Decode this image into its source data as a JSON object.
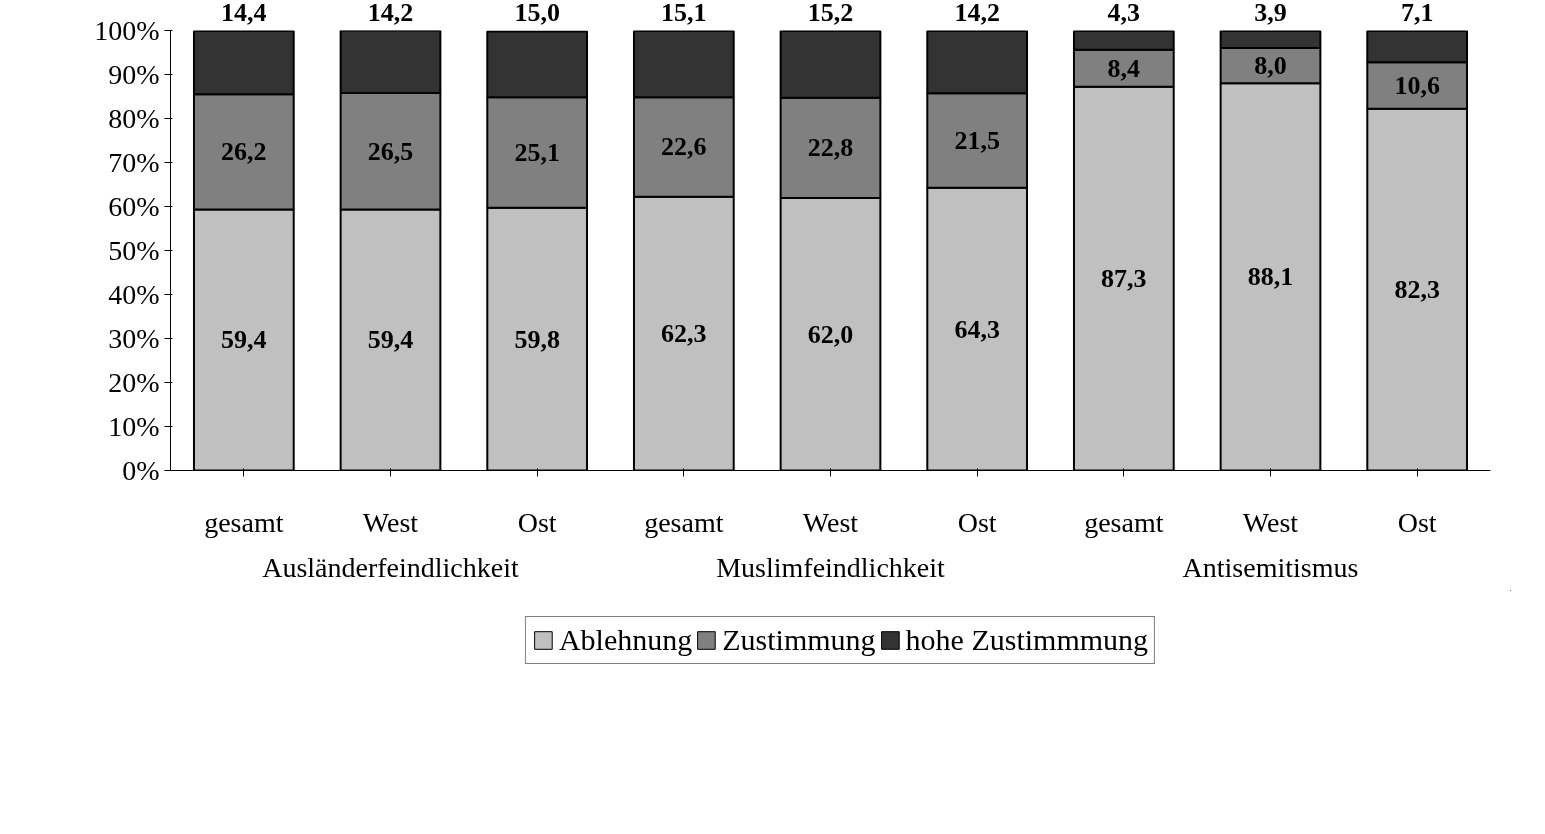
{
  "chart_data": {
    "type": "bar",
    "stacked": true,
    "categories": [
      "gesamt",
      "West",
      "Ost",
      "gesamt",
      "West",
      "Ost",
      "gesamt",
      "West",
      "Ost"
    ],
    "annotations": [
      "Ausländerfeindlichkeit",
      "Muslimfeindlichkeit",
      "Antisemitismus"
    ],
    "series": [
      {
        "name": "Ablehnung",
        "color": "#c0c0c0",
        "values": [
          59.4,
          59.4,
          59.8,
          62.3,
          62.0,
          64.3,
          87.3,
          88.1,
          82.3
        ],
        "value_labels": [
          "59,4",
          "59,4",
          "59,8",
          "62,3",
          "62,0",
          "64,3",
          "87,3",
          "88,1",
          "82,3"
        ]
      },
      {
        "name": "Zustimmung",
        "color": "#808080",
        "values": [
          26.2,
          26.5,
          25.1,
          22.6,
          22.8,
          21.5,
          8.4,
          8.0,
          10.6
        ],
        "value_labels": [
          "26,2",
          "26,5",
          "25,1",
          "22,6",
          "22,8",
          "21,5",
          "8,4",
          "8,0",
          "10,6"
        ]
      },
      {
        "name": "hohe Zustimmmung",
        "color": "#333333",
        "values": [
          14.4,
          14.2,
          15.0,
          15.1,
          15.2,
          14.2,
          4.3,
          3.9,
          7.1
        ],
        "value_labels": [
          "14,4",
          "14,2",
          "15,0",
          "15,1",
          "15,2",
          "14,2",
          "4,3",
          "3,9",
          "7,1"
        ]
      }
    ],
    "ylim": [
      0,
      100.1
    ],
    "yticks": [
      {
        "value": 0,
        "label": "0%"
      },
      {
        "value": 10,
        "label": "10%"
      },
      {
        "value": 20,
        "label": "20%"
      },
      {
        "value": 30,
        "label": "30%"
      },
      {
        "value": 40,
        "label": "40%"
      },
      {
        "value": 50,
        "label": "50%"
      },
      {
        "value": 60,
        "label": "60%"
      },
      {
        "value": 70,
        "label": "70%"
      },
      {
        "value": 80,
        "label": "80%"
      },
      {
        "value": 90,
        "label": "90%"
      },
      {
        "value": 100,
        "label": "100%"
      }
    ],
    "grid": false,
    "legend": "bottom"
  }
}
